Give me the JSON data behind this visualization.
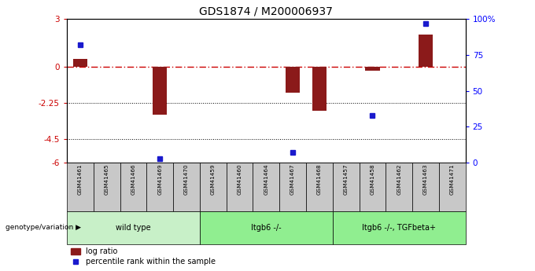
{
  "title": "GDS1874 / M200006937",
  "samples": [
    "GSM41461",
    "GSM41465",
    "GSM41466",
    "GSM41469",
    "GSM41470",
    "GSM41459",
    "GSM41460",
    "GSM41464",
    "GSM41467",
    "GSM41468",
    "GSM41457",
    "GSM41458",
    "GSM41462",
    "GSM41463",
    "GSM41471"
  ],
  "log_ratio": [
    0.5,
    0.0,
    0.0,
    -3.0,
    0.0,
    0.0,
    0.0,
    0.0,
    -1.6,
    -2.75,
    0.0,
    -0.25,
    0.0,
    2.0,
    0.0
  ],
  "percentile_rank": [
    82,
    null,
    null,
    3,
    null,
    null,
    null,
    null,
    7,
    null,
    null,
    33,
    null,
    97,
    null
  ],
  "ylim_left": [
    -6,
    3
  ],
  "ylim_right": [
    0,
    100
  ],
  "yticks_left": [
    3,
    0,
    -2.25,
    -4.5,
    -6
  ],
  "yticks_right": [
    100,
    75,
    50,
    25,
    0
  ],
  "ytick_labels_left": [
    "3",
    "0",
    "-2.25",
    "-4.5",
    "-6"
  ],
  "ytick_labels_right": [
    "100%",
    "75",
    "50",
    "25",
    "0"
  ],
  "groups": [
    {
      "label": "wild type",
      "start": 0,
      "end": 5,
      "color": "#c8f0c8"
    },
    {
      "label": "Itgb6 -/-",
      "start": 5,
      "end": 10,
      "color": "#90ee90"
    },
    {
      "label": "Itgb6 -/-, TGFbeta+",
      "start": 10,
      "end": 15,
      "color": "#90ee90"
    }
  ],
  "group_label_prefix": "genotype/variation",
  "bar_color_red": "#8b1a1a",
  "bar_color_blue": "#1a1acd",
  "zero_line_color": "#cc0000",
  "dotted_line_color": "#000000",
  "bg_color": "#ffffff",
  "tick_area_color": "#c8c8c8",
  "legend_red_label": "log ratio",
  "legend_blue_label": "percentile rank within the sample",
  "bar_width": 0.55
}
